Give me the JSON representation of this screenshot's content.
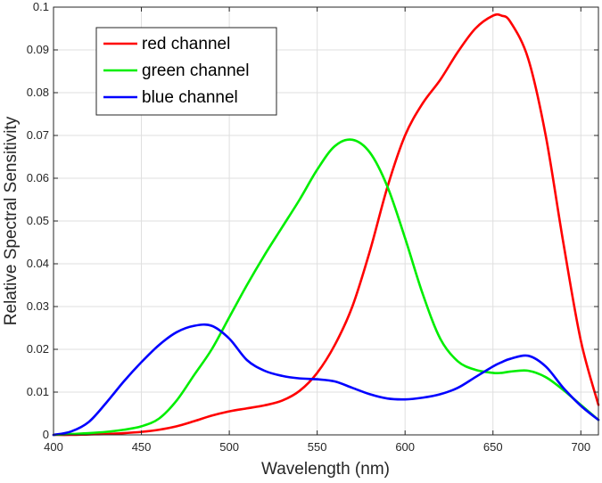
{
  "chart_data": {
    "type": "line",
    "title": "",
    "xlabel": "Wavelength (nm)",
    "ylabel": "Relative Spectral Sensitivity",
    "xlim": [
      400,
      710
    ],
    "ylim": [
      0,
      0.1
    ],
    "x_ticks": [
      400,
      450,
      500,
      550,
      600,
      650,
      700
    ],
    "y_ticks": [
      0,
      0.01,
      0.02,
      0.03,
      0.04,
      0.05,
      0.06,
      0.07,
      0.08,
      0.09,
      0.1
    ],
    "x_tick_labels": [
      "400",
      "450",
      "500",
      "550",
      "600",
      "650",
      "700"
    ],
    "y_tick_labels": [
      "0",
      "0.01",
      "0.02",
      "0.03",
      "0.04",
      "0.05",
      "0.06",
      "0.07",
      "0.08",
      "0.09",
      "0.1"
    ],
    "grid": true,
    "legend_position": "top-left",
    "x": [
      400,
      410,
      420,
      430,
      440,
      450,
      460,
      470,
      480,
      490,
      500,
      510,
      520,
      530,
      540,
      550,
      560,
      570,
      580,
      590,
      600,
      610,
      620,
      630,
      640,
      650,
      655,
      660,
      670,
      680,
      690,
      700,
      710
    ],
    "series": [
      {
        "name": "red channel",
        "color": "#ff0000",
        "values": [
          0.0,
          0.0,
          0.0001,
          0.0002,
          0.0004,
          0.0007,
          0.0012,
          0.002,
          0.0032,
          0.0045,
          0.0055,
          0.0062,
          0.0069,
          0.008,
          0.0103,
          0.0145,
          0.021,
          0.03,
          0.043,
          0.058,
          0.07,
          0.0775,
          0.083,
          0.0895,
          0.095,
          0.098,
          0.098,
          0.0965,
          0.088,
          0.07,
          0.045,
          0.022,
          0.007
        ]
      },
      {
        "name": "green channel",
        "color": "#00ee00",
        "values": [
          0.0,
          0.0002,
          0.0004,
          0.0007,
          0.0012,
          0.002,
          0.0038,
          0.008,
          0.014,
          0.02,
          0.0275,
          0.035,
          0.042,
          0.0485,
          0.055,
          0.062,
          0.0675,
          0.069,
          0.066,
          0.058,
          0.046,
          0.033,
          0.0225,
          0.0172,
          0.0152,
          0.0145,
          0.0145,
          0.0148,
          0.015,
          0.0135,
          0.0105,
          0.007,
          0.0035
        ]
      },
      {
        "name": "blue channel",
        "color": "#0000ff",
        "values": [
          0.0,
          0.0008,
          0.003,
          0.0075,
          0.0125,
          0.017,
          0.021,
          0.024,
          0.0255,
          0.0255,
          0.0225,
          0.0175,
          0.015,
          0.0138,
          0.0132,
          0.013,
          0.0125,
          0.011,
          0.0095,
          0.0085,
          0.0083,
          0.0087,
          0.0095,
          0.011,
          0.0135,
          0.016,
          0.017,
          0.0178,
          0.0185,
          0.016,
          0.011,
          0.0068,
          0.0035
        ]
      }
    ]
  }
}
